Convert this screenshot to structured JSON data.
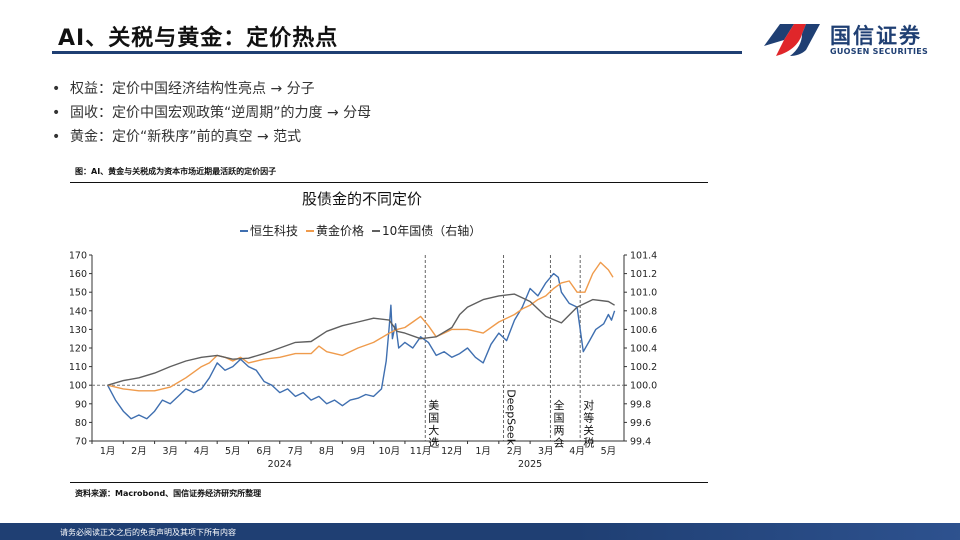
{
  "slide": {
    "title": "AI、关税与黄金：定价热点",
    "bullets": [
      "权益：定价中国经济结构性亮点 → 分子",
      "固收：定价中国宏观政策“逆周期”的力度 → 分母",
      "黄金：定价“新秩序”前的真空 → 范式"
    ],
    "figure_caption": "图：AI、黄金与关税成为资本市场近期最活跃的定价因子",
    "source": "资料来源：Macrobond、国信证券经济研究所整理",
    "footer": "请务必阅读正文之后的免责声明及其项下所有内容"
  },
  "logo": {
    "cn": "国信证券",
    "en": "GUOSEN SECURITIES",
    "colors": {
      "red": "#e0262a",
      "blue": "#1f3f73"
    }
  },
  "chart_data": {
    "type": "line",
    "title": "股债金的不同定价",
    "legend": {
      "placement": "top",
      "items": [
        {
          "label": "恒生科技",
          "color": "#3f6fb0"
        },
        {
          "label": "黄金价格",
          "color": "#ef9b4c"
        },
        {
          "label": "10年国债（右轴）",
          "color": "#5f5f5f"
        }
      ]
    },
    "x_ticks": [
      "1月",
      "2月",
      "3月",
      "4月",
      "5月",
      "6月",
      "7月",
      "8月",
      "9月",
      "10月",
      "11月",
      "12月",
      "1月",
      "2月",
      "3月",
      "4月",
      "5月"
    ],
    "year_labels": [
      "2024",
      "2025"
    ],
    "y_left": {
      "min": 70,
      "max": 170,
      "ticks": [
        70,
        80,
        90,
        100,
        110,
        120,
        130,
        140,
        150,
        160,
        170
      ]
    },
    "y_right": {
      "min": 99.4,
      "max": 101.4,
      "ticks": [
        "99.4",
        "99.6",
        "99.8",
        "100.0",
        "100.2",
        "100.4",
        "100.6",
        "100.8",
        "101.0",
        "101.2",
        "101.4"
      ]
    },
    "reference_line": 100,
    "events": [
      {
        "label": "美国大选",
        "chars": [
          "美",
          "国",
          "大",
          "选"
        ],
        "month": 10.15,
        "vertical": false
      },
      {
        "label": "DeepSeek",
        "month": 12.65,
        "vertical": true
      },
      {
        "label": "全国两会",
        "chars": [
          "全",
          "国",
          "两",
          "会"
        ],
        "month": 14.15,
        "vertical": false
      },
      {
        "label": "对等关税",
        "chars": [
          "对",
          "等",
          "关",
          "税"
        ],
        "month": 15.1,
        "vertical": false
      }
    ],
    "series": [
      {
        "name": "恒生科技",
        "axis": "left",
        "color": "#3f6fb0",
        "points": [
          [
            0,
            100
          ],
          [
            0.25,
            92
          ],
          [
            0.5,
            86
          ],
          [
            0.75,
            82
          ],
          [
            1,
            84
          ],
          [
            1.25,
            82
          ],
          [
            1.5,
            86
          ],
          [
            1.75,
            92
          ],
          [
            2,
            90
          ],
          [
            2.25,
            94
          ],
          [
            2.5,
            98
          ],
          [
            2.75,
            96
          ],
          [
            3,
            98
          ],
          [
            3.25,
            104
          ],
          [
            3.5,
            112
          ],
          [
            3.75,
            108
          ],
          [
            4,
            110
          ],
          [
            4.25,
            114
          ],
          [
            4.5,
            110
          ],
          [
            4.75,
            108
          ],
          [
            5,
            102
          ],
          [
            5.25,
            100
          ],
          [
            5.5,
            96
          ],
          [
            5.75,
            98
          ],
          [
            6,
            94
          ],
          [
            6.25,
            96
          ],
          [
            6.5,
            92
          ],
          [
            6.75,
            94
          ],
          [
            7,
            90
          ],
          [
            7.25,
            92
          ],
          [
            7.5,
            89
          ],
          [
            7.75,
            92
          ],
          [
            8,
            93
          ],
          [
            8.25,
            95
          ],
          [
            8.5,
            94
          ],
          [
            8.75,
            98
          ],
          [
            8.9,
            113
          ],
          [
            9,
            132
          ],
          [
            9.05,
            143
          ],
          [
            9.1,
            125
          ],
          [
            9.2,
            133
          ],
          [
            9.3,
            120
          ],
          [
            9.5,
            123
          ],
          [
            9.75,
            120
          ],
          [
            10,
            126
          ],
          [
            10.25,
            123
          ],
          [
            10.5,
            116
          ],
          [
            10.75,
            118
          ],
          [
            11,
            115
          ],
          [
            11.25,
            117
          ],
          [
            11.5,
            120
          ],
          [
            11.75,
            115
          ],
          [
            12,
            112
          ],
          [
            12.25,
            122
          ],
          [
            12.5,
            128
          ],
          [
            12.75,
            124
          ],
          [
            13,
            135
          ],
          [
            13.25,
            142
          ],
          [
            13.5,
            152
          ],
          [
            13.75,
            148
          ],
          [
            14,
            155
          ],
          [
            14.25,
            160
          ],
          [
            14.4,
            158
          ],
          [
            14.5,
            150
          ],
          [
            14.75,
            144
          ],
          [
            15,
            142
          ],
          [
            15.1,
            130
          ],
          [
            15.2,
            118
          ],
          [
            15.4,
            124
          ],
          [
            15.6,
            130
          ],
          [
            15.85,
            133
          ],
          [
            16,
            138
          ],
          [
            16.1,
            135
          ],
          [
            16.2,
            140
          ]
        ]
      },
      {
        "name": "黄金价格",
        "axis": "left",
        "color": "#ef9b4c",
        "points": [
          [
            0,
            100
          ],
          [
            0.5,
            98
          ],
          [
            1,
            97
          ],
          [
            1.5,
            97
          ],
          [
            2,
            99
          ],
          [
            2.5,
            104
          ],
          [
            3,
            110
          ],
          [
            3.25,
            112
          ],
          [
            3.5,
            116
          ],
          [
            3.75,
            115
          ],
          [
            4,
            113
          ],
          [
            4.25,
            115
          ],
          [
            4.5,
            112
          ],
          [
            5,
            114
          ],
          [
            5.5,
            115
          ],
          [
            6,
            117
          ],
          [
            6.5,
            117
          ],
          [
            6.75,
            121
          ],
          [
            7,
            118
          ],
          [
            7.5,
            116
          ],
          [
            8,
            120
          ],
          [
            8.5,
            123
          ],
          [
            9,
            128
          ],
          [
            9.25,
            130
          ],
          [
            9.5,
            131
          ],
          [
            9.75,
            134
          ],
          [
            10,
            137
          ],
          [
            10.25,
            132
          ],
          [
            10.5,
            126
          ],
          [
            10.75,
            128
          ],
          [
            11,
            130
          ],
          [
            11.5,
            130
          ],
          [
            12,
            128
          ],
          [
            12.5,
            134
          ],
          [
            13,
            138
          ],
          [
            13.25,
            141
          ],
          [
            13.5,
            143
          ],
          [
            13.75,
            146
          ],
          [
            14,
            148
          ],
          [
            14.25,
            152
          ],
          [
            14.5,
            155
          ],
          [
            14.75,
            156
          ],
          [
            15,
            150
          ],
          [
            15.25,
            150
          ],
          [
            15.5,
            160
          ],
          [
            15.75,
            166
          ],
          [
            16,
            162
          ],
          [
            16.15,
            158
          ]
        ]
      },
      {
        "name": "10年国债（右轴）",
        "axis": "right",
        "color": "#5f5f5f",
        "points": [
          [
            0,
            100.0
          ],
          [
            0.5,
            100.05
          ],
          [
            1,
            100.08
          ],
          [
            1.5,
            100.13
          ],
          [
            2,
            100.2
          ],
          [
            2.5,
            100.26
          ],
          [
            3,
            100.3
          ],
          [
            3.5,
            100.32
          ],
          [
            4,
            100.28
          ],
          [
            4.5,
            100.29
          ],
          [
            5,
            100.34
          ],
          [
            5.5,
            100.4
          ],
          [
            6,
            100.46
          ],
          [
            6.5,
            100.47
          ],
          [
            7,
            100.58
          ],
          [
            7.5,
            100.64
          ],
          [
            8,
            100.68
          ],
          [
            8.5,
            100.72
          ],
          [
            9,
            100.7
          ],
          [
            9.25,
            100.58
          ],
          [
            9.5,
            100.56
          ],
          [
            10,
            100.5
          ],
          [
            10.5,
            100.52
          ],
          [
            11,
            100.62
          ],
          [
            11.25,
            100.76
          ],
          [
            11.5,
            100.84
          ],
          [
            12,
            100.92
          ],
          [
            12.5,
            100.96
          ],
          [
            13,
            100.98
          ],
          [
            13.5,
            100.9
          ],
          [
            14,
            100.74
          ],
          [
            14.5,
            100.67
          ],
          [
            15,
            100.84
          ],
          [
            15.5,
            100.92
          ],
          [
            16,
            100.9
          ],
          [
            16.2,
            100.86
          ]
        ]
      }
    ]
  }
}
